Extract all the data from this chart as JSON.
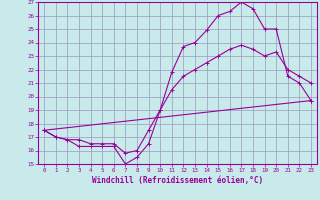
{
  "xlabel": "Windchill (Refroidissement éolien,°C)",
  "bg_color": "#c8eaea",
  "line_color": "#990099",
  "grid_color": "#9999bb",
  "xlim": [
    -0.5,
    23.5
  ],
  "ylim": [
    15,
    27
  ],
  "yticks": [
    15,
    16,
    17,
    18,
    19,
    20,
    21,
    22,
    23,
    24,
    25,
    26,
    27
  ],
  "xticks": [
    0,
    1,
    2,
    3,
    4,
    5,
    6,
    7,
    8,
    9,
    10,
    11,
    12,
    13,
    14,
    15,
    16,
    17,
    18,
    19,
    20,
    21,
    22,
    23
  ],
  "line1_x": [
    0,
    1,
    2,
    3,
    4,
    5,
    6,
    7,
    8,
    9,
    10,
    11,
    12,
    13,
    14,
    15,
    16,
    17,
    18,
    19,
    20,
    21,
    22,
    23
  ],
  "line1_y": [
    17.5,
    17.0,
    16.8,
    16.3,
    16.3,
    16.3,
    16.3,
    15.0,
    15.5,
    16.5,
    19.0,
    21.8,
    23.7,
    24.0,
    24.9,
    26.0,
    26.3,
    27.0,
    26.5,
    25.0,
    25.0,
    21.5,
    21.0,
    19.7
  ],
  "line2_x": [
    0,
    23
  ],
  "line2_y": [
    17.5,
    19.7
  ],
  "line3_x": [
    0,
    1,
    2,
    3,
    4,
    5,
    6,
    7,
    8,
    9,
    10,
    11,
    12,
    13,
    14,
    15,
    16,
    17,
    18,
    19,
    20,
    21,
    22,
    23
  ],
  "line3_y": [
    17.5,
    17.0,
    16.8,
    16.8,
    16.5,
    16.5,
    16.5,
    15.8,
    16.0,
    17.5,
    19.0,
    20.5,
    21.5,
    22.0,
    22.5,
    23.0,
    23.5,
    23.8,
    23.5,
    23.0,
    23.3,
    22.0,
    21.5,
    21.0
  ]
}
